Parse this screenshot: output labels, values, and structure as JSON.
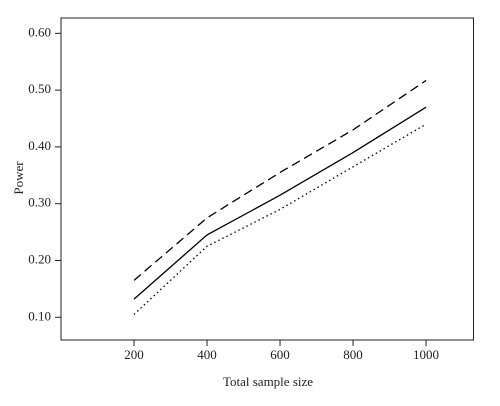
{
  "chart_data": {
    "type": "line",
    "xlabel": "Total sample size",
    "ylabel": "Power",
    "x": [
      200,
      400,
      600,
      800,
      1000
    ],
    "series": [
      {
        "color": "#000000",
        "dash": "dashed",
        "values": [
          0.165,
          0.275,
          0.355,
          0.43,
          0.517
        ]
      },
      {
        "color": "#000000",
        "dash": "solid",
        "values": [
          0.132,
          0.245,
          0.315,
          0.39,
          0.47
        ]
      },
      {
        "color": "#000000",
        "dash": "dotted",
        "values": [
          0.105,
          0.225,
          0.29,
          0.365,
          0.44
        ]
      }
    ],
    "xlim": [
      0,
      1130
    ],
    "xticks": [
      200,
      400,
      600,
      800,
      1000
    ],
    "ylim": [
      0.06,
      0.627
    ],
    "yticks": [
      {
        "value": 0.1,
        "label": "0.10"
      },
      {
        "value": 0.2,
        "label": "0.20"
      },
      {
        "value": 0.3,
        "label": "0.30"
      },
      {
        "value": 0.4,
        "label": "0.40"
      },
      {
        "value": 0.5,
        "label": "0.50"
      },
      {
        "value": 0.6,
        "label": "0.60"
      }
    ],
    "grid": false
  }
}
